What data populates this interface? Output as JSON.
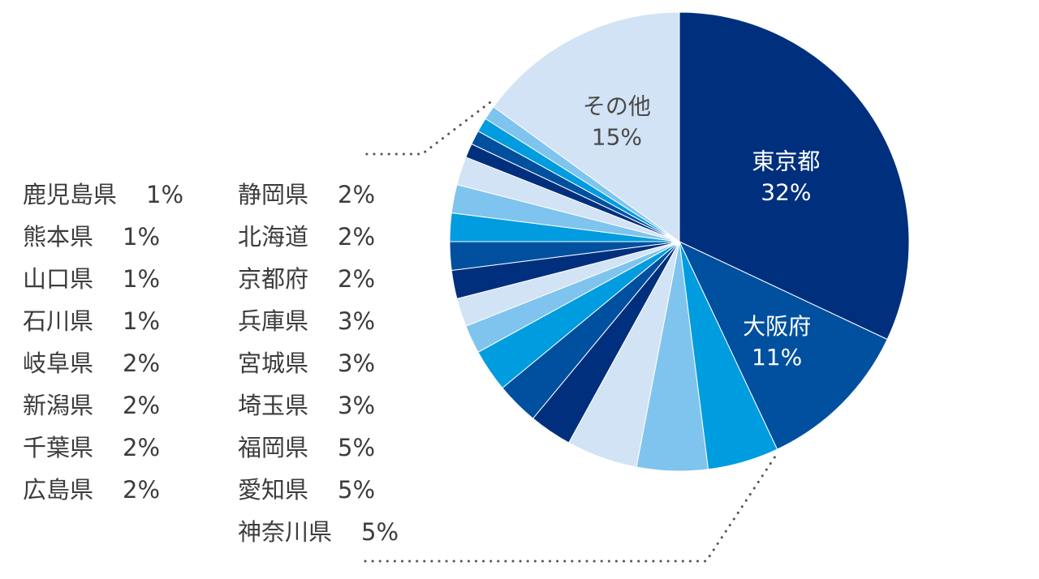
{
  "chart_data": {
    "type": "pie",
    "slices": [
      {
        "label": "東京都",
        "value": 32,
        "color": "#00307d",
        "show_label": true,
        "label_color": "#ffffff"
      },
      {
        "label": "大阪府",
        "value": 11,
        "color": "#00509f",
        "show_label": true,
        "label_color": "#ffffff"
      },
      {
        "label": "神奈川県",
        "value": 5,
        "color": "#009ce0",
        "show_label": false
      },
      {
        "label": "愛知県",
        "value": 5,
        "color": "#7fc4ee",
        "show_label": false
      },
      {
        "label": "福岡県",
        "value": 5,
        "color": "#d2e3f5",
        "show_label": false
      },
      {
        "label": "埼玉県",
        "value": 3,
        "color": "#00307d",
        "show_label": false
      },
      {
        "label": "宮城県",
        "value": 3,
        "color": "#00509f",
        "show_label": false
      },
      {
        "label": "兵庫県",
        "value": 3,
        "color": "#009ce0",
        "show_label": false
      },
      {
        "label": "京都府",
        "value": 2,
        "color": "#7fc4ee",
        "show_label": false
      },
      {
        "label": "北海道",
        "value": 2,
        "color": "#d2e3f5",
        "show_label": false
      },
      {
        "label": "静岡県",
        "value": 2,
        "color": "#00307d",
        "show_label": false
      },
      {
        "label": "広島県",
        "value": 2,
        "color": "#00509f",
        "show_label": false
      },
      {
        "label": "千葉県",
        "value": 2,
        "color": "#009ce0",
        "show_label": false
      },
      {
        "label": "新潟県",
        "value": 2,
        "color": "#7fc4ee",
        "show_label": false
      },
      {
        "label": "岐阜県",
        "value": 2,
        "color": "#d2e3f5",
        "show_label": false
      },
      {
        "label": "石川県",
        "value": 1,
        "color": "#00307d",
        "show_label": false
      },
      {
        "label": "山口県",
        "value": 1,
        "color": "#00509f",
        "show_label": false
      },
      {
        "label": "熊本県",
        "value": 1,
        "color": "#009ce0",
        "show_label": false
      },
      {
        "label": "鹿児島県",
        "value": 1,
        "color": "#7fc4ee",
        "show_label": false
      },
      {
        "label": "その他",
        "value": 15,
        "color": "#d2e3f5",
        "show_label": true,
        "label_color": "#4a4a4a"
      }
    ],
    "unit": "%",
    "legend_columns": [
      [
        {
          "name": "鹿児島県",
          "value": "1%"
        },
        {
          "name": "熊本県",
          "value": "1%"
        },
        {
          "name": "山口県",
          "value": "1%"
        },
        {
          "name": "石川県",
          "value": "1%"
        },
        {
          "name": "岐阜県",
          "value": "2%"
        },
        {
          "name": "新潟県",
          "value": "2%"
        },
        {
          "name": "千葉県",
          "value": "2%"
        },
        {
          "name": "広島県",
          "value": "2%"
        }
      ],
      [
        {
          "name": "静岡県",
          "value": "2%"
        },
        {
          "name": "北海道",
          "value": "2%"
        },
        {
          "name": "京都府",
          "value": "2%"
        },
        {
          "name": "兵庫県",
          "value": "3%"
        },
        {
          "name": "宮城県",
          "value": "3%"
        },
        {
          "name": "埼玉県",
          "value": "3%"
        },
        {
          "name": "福岡県",
          "value": "5%"
        },
        {
          "name": "愛知県",
          "value": "5%"
        },
        {
          "name": "神奈川県",
          "value": "5%"
        }
      ]
    ],
    "legend_placement": "left",
    "grid": false
  }
}
